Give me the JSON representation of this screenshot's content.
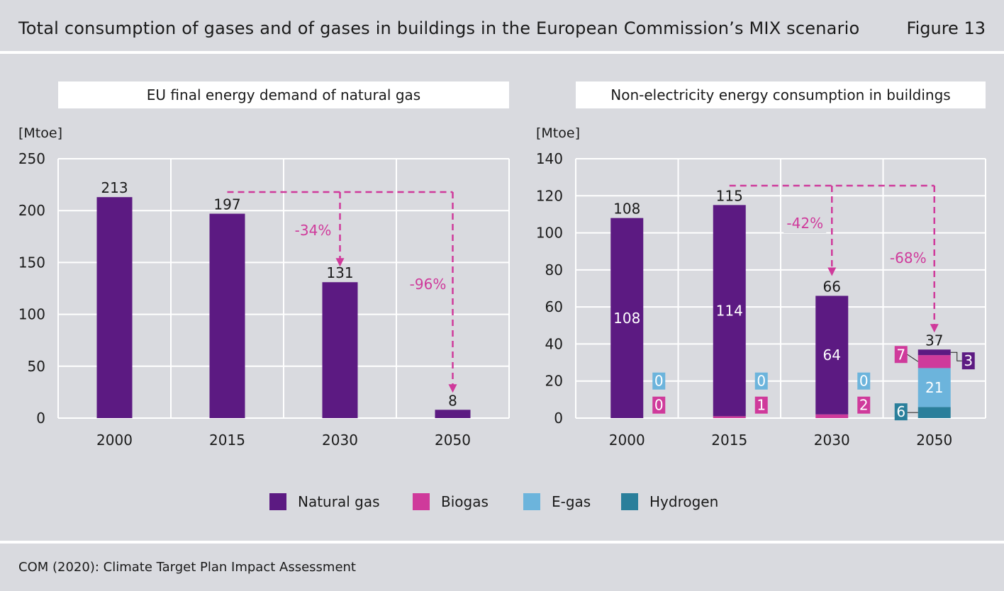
{
  "header": {
    "title": "Total consumption of gases and of gases in buildings in the European Commission’s MIX scenario",
    "figure": "Figure 13"
  },
  "footer": {
    "source": "COM (2020): Climate Target Plan Impact Assessment"
  },
  "colors": {
    "natural_gas": "#5c1a82",
    "biogas": "#cf3a9b",
    "e_gas": "#6cb4dc",
    "hydrogen": "#2a7f9b",
    "arrow": "#cf3a9b",
    "grid": "#ffffff"
  },
  "legend": [
    {
      "label": "Natural gas",
      "color": "#5c1a82"
    },
    {
      "label": "Biogas",
      "color": "#cf3a9b"
    },
    {
      "label": "E-gas",
      "color": "#6cb4dc"
    },
    {
      "label": "Hydrogen",
      "color": "#2a7f9b"
    }
  ],
  "chart_data": [
    {
      "type": "bar",
      "title": "EU final energy demand of natural gas",
      "ylabel": "[Mtoe]",
      "ylim": [
        0,
        250
      ],
      "yticks": [
        0,
        50,
        100,
        150,
        200,
        250
      ],
      "categories": [
        "2000",
        "2015",
        "2030",
        "2050"
      ],
      "values": [
        213,
        197,
        131,
        8
      ],
      "value_labels": [
        "213",
        "197",
        "131",
        "8"
      ],
      "annotations": [
        {
          "text": "-34%",
          "from": "2015",
          "to": "2030"
        },
        {
          "text": "-96%",
          "from": "2015",
          "to": "2050"
        }
      ],
      "grid": true
    },
    {
      "type": "bar",
      "stacked": true,
      "title": "Non-electricity energy consumption in buildings",
      "ylabel": "[Mtoe]",
      "ylim": [
        0,
        140
      ],
      "yticks": [
        0,
        20,
        40,
        60,
        80,
        100,
        120,
        140
      ],
      "categories": [
        "2000",
        "2015",
        "2030",
        "2050"
      ],
      "totals": [
        108,
        115,
        66,
        37
      ],
      "series": [
        {
          "name": "Hydrogen",
          "values": [
            0,
            0,
            0,
            6
          ]
        },
        {
          "name": "E-gas",
          "values": [
            0,
            0,
            0,
            21
          ]
        },
        {
          "name": "Biogas",
          "values": [
            0,
            1,
            2,
            7
          ]
        },
        {
          "name": "Natural gas",
          "values": [
            108,
            114,
            64,
            3
          ]
        }
      ],
      "segment_labels": {
        "natural_gas": [
          "108",
          "114",
          "64",
          "3"
        ],
        "biogas": [
          "0",
          "1",
          "2",
          "7"
        ],
        "e_gas": [
          "0",
          "0",
          "0",
          "21"
        ],
        "hydrogen": [
          "",
          "",
          "",
          "6"
        ]
      },
      "annotations": [
        {
          "text": "-42%",
          "from": "2015",
          "to": "2030"
        },
        {
          "text": "-68%",
          "from": "2015",
          "to": "2050"
        }
      ],
      "grid": true
    }
  ]
}
